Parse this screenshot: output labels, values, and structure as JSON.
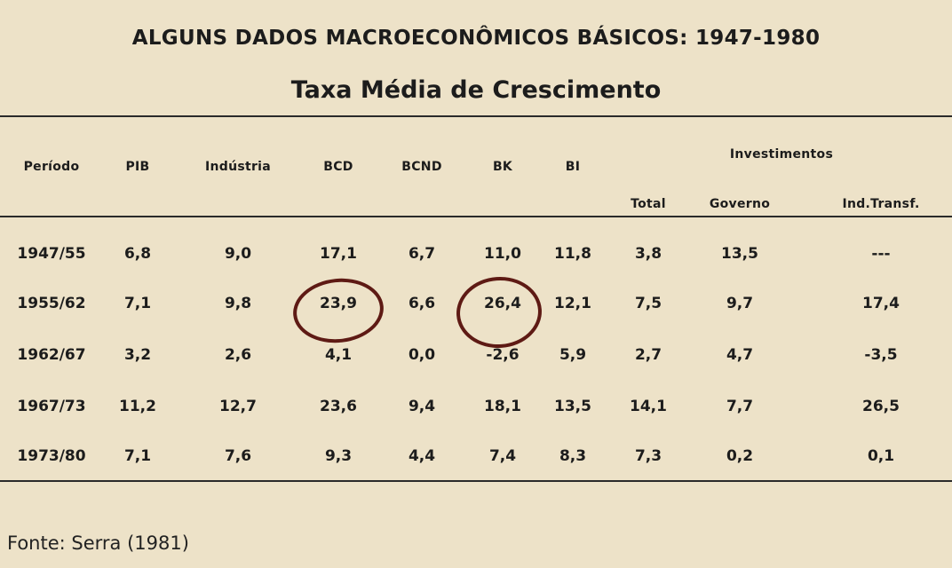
{
  "title": "ALGUNS DADOS MACROECONÔMICOS BÁSICOS: 1947-1980",
  "subtitle": "Taxa Média de Crescimento",
  "headers": {
    "periodo": "Período",
    "pib": "PIB",
    "industria": "Indústria",
    "bcd": "BCD",
    "bcnd": "BCND",
    "bk": "BK",
    "bi": "BI",
    "investimentos": "Investimentos",
    "total": "Total",
    "governo": "Governo",
    "ind_transf": "Ind.Transf."
  },
  "rows": [
    [
      "1947/55",
      "6,8",
      "9,0",
      "17,1",
      "6,7",
      "11,0",
      "11,8",
      "3,8",
      "13,5",
      "---"
    ],
    [
      "1955/62",
      "7,1",
      "9,8",
      "23,9",
      "6,6",
      "26,4",
      "12,1",
      "7,5",
      "9,7",
      "17,4"
    ],
    [
      "1962/67",
      "3,2",
      "2,6",
      "4,1",
      "0,0",
      "-2,6",
      "5,9",
      "2,7",
      "4,7",
      "-3,5"
    ],
    [
      "1967/73",
      "11,2",
      "12,7",
      "23,6",
      "9,4",
      "18,1",
      "13,5",
      "14,1",
      "7,7",
      "26,5"
    ],
    [
      "1973/80",
      "7,1",
      "7,6",
      "9,3",
      "4,4",
      "7,4",
      "8,3",
      "7,3",
      "0,2",
      "0,1"
    ]
  ],
  "highlighted_cells": [
    {
      "row": "1955/62",
      "column": "BCD",
      "value": "23,9"
    },
    {
      "row": "1955/62",
      "column": "BK",
      "value": "26,4"
    }
  ],
  "annotation_color": "#5e1a14",
  "source": "Fonte: Serra (1981)"
}
